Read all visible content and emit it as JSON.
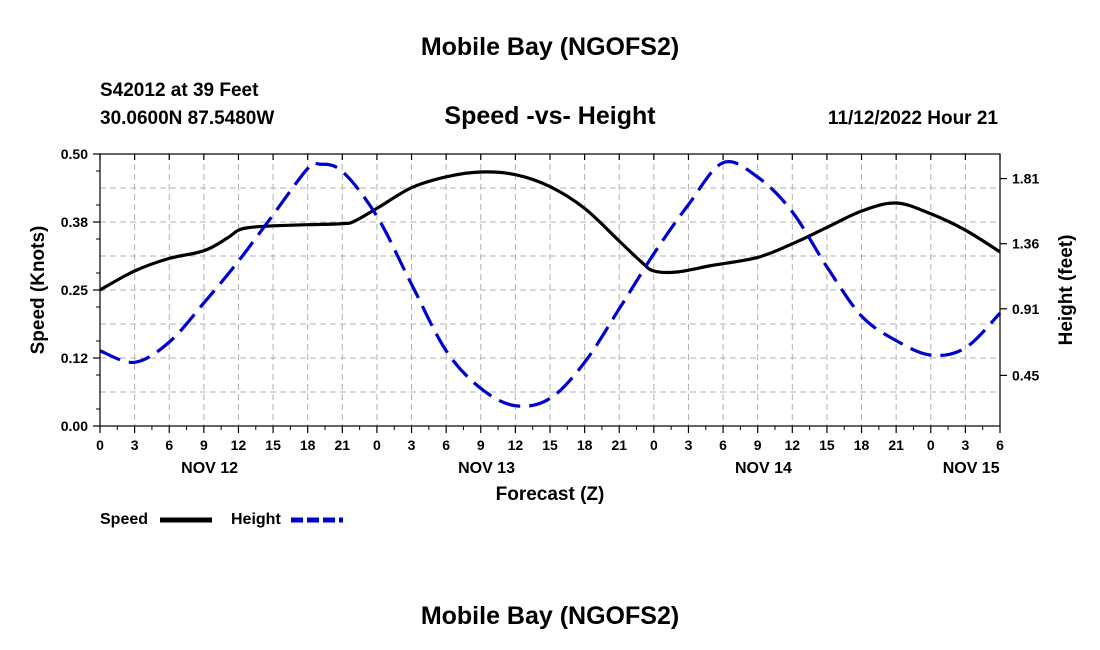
{
  "header": {
    "title": "Mobile Bay (NGOFS2)",
    "station": "S42012 at 39 Feet",
    "coords": "30.0600N  87.5480W",
    "subtitle": "Speed -vs- Height",
    "datetime": "11/12/2022 Hour 21"
  },
  "footer": {
    "title": "Mobile Bay (NGOFS2)"
  },
  "legend": {
    "speed_label": "Speed",
    "height_label": "Height"
  },
  "colors": {
    "speed": "#000000",
    "height": "#0000cc"
  },
  "chart_data": {
    "type": "line",
    "title": "Speed -vs- Height",
    "xlabel": "Forecast (Z)",
    "ylabel": "Speed (Knots)",
    "ylabel_right": "Height (feet)",
    "xlim": [
      0,
      78
    ],
    "ylim": [
      0,
      0.5
    ],
    "ylim_right": [
      0.1,
      1.98
    ],
    "yticks": [
      "0.00",
      "0.12",
      "0.25",
      "0.38",
      "0.50"
    ],
    "yticks_right": [
      "0.45",
      "0.91",
      "1.36",
      "1.81"
    ],
    "xticks": [
      "0",
      "3",
      "6",
      "9",
      "12",
      "15",
      "18",
      "21",
      "0",
      "3",
      "6",
      "9",
      "12",
      "15",
      "18",
      "21",
      "0",
      "3",
      "6",
      "9",
      "12",
      "15",
      "18",
      "21",
      "0",
      "3",
      "6"
    ],
    "date_labels": [
      {
        "label": "NOV 12",
        "hour": 9.5
      },
      {
        "label": "NOV 13",
        "hour": 33.5
      },
      {
        "label": "NOV 14",
        "hour": 57.5
      },
      {
        "label": "NOV 15",
        "hour": 75.5
      }
    ],
    "series": [
      {
        "name": "Speed",
        "axis": "left",
        "style": "solid",
        "x": [
          0,
          3,
          6,
          9,
          11,
          12,
          13,
          15,
          18,
          21,
          22,
          24,
          27,
          30,
          33,
          36,
          39,
          42,
          45,
          47,
          48,
          50,
          53,
          57,
          60,
          63,
          66,
          69,
          72,
          75,
          78
        ],
        "y": [
          0.25,
          0.285,
          0.308,
          0.322,
          0.345,
          0.36,
          0.365,
          0.368,
          0.37,
          0.372,
          0.376,
          0.4,
          0.438,
          0.458,
          0.467,
          0.462,
          0.44,
          0.4,
          0.34,
          0.3,
          0.285,
          0.283,
          0.295,
          0.31,
          0.335,
          0.365,
          0.395,
          0.41,
          0.39,
          0.36,
          0.32
        ]
      },
      {
        "name": "Height",
        "axis": "right",
        "style": "dashed",
        "x": [
          0,
          3,
          6,
          9,
          12,
          15,
          18,
          19,
          21,
          24,
          27,
          30,
          33,
          36,
          39,
          42,
          45,
          48,
          51,
          54,
          57,
          60,
          63,
          66,
          69,
          72,
          75,
          78
        ],
        "y": [
          0.62,
          0.54,
          0.68,
          0.95,
          1.24,
          1.56,
          1.88,
          1.91,
          1.86,
          1.55,
          1.08,
          0.62,
          0.36,
          0.24,
          0.29,
          0.54,
          0.91,
          1.29,
          1.63,
          1.92,
          1.82,
          1.58,
          1.2,
          0.86,
          0.69,
          0.59,
          0.64,
          0.88
        ]
      }
    ]
  }
}
